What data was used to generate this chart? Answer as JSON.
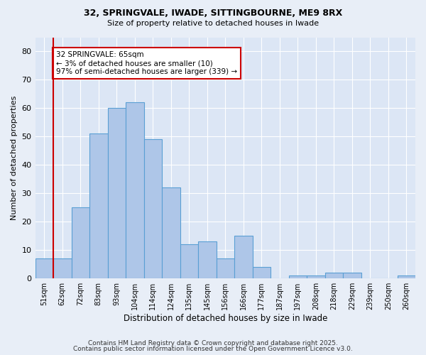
{
  "title1": "32, SPRINGVALE, IWADE, SITTINGBOURNE, ME9 8RX",
  "title2": "Size of property relative to detached houses in Iwade",
  "xlabel": "Distribution of detached houses by size in Iwade",
  "ylabel": "Number of detached properties",
  "bar_labels": [
    "51sqm",
    "62sqm",
    "72sqm",
    "83sqm",
    "93sqm",
    "104sqm",
    "114sqm",
    "124sqm",
    "135sqm",
    "145sqm",
    "156sqm",
    "166sqm",
    "177sqm",
    "187sqm",
    "197sqm",
    "208sqm",
    "218sqm",
    "229sqm",
    "239sqm",
    "250sqm",
    "260sqm"
  ],
  "bar_values": [
    7,
    7,
    25,
    51,
    60,
    62,
    49,
    32,
    12,
    13,
    7,
    15,
    4,
    0,
    1,
    1,
    2,
    2,
    0,
    0,
    1
  ],
  "bar_color": "#aec6e8",
  "bar_edge_color": "#5a9fd4",
  "vline_x": 0.5,
  "vline_color": "#cc0000",
  "annotation_text": "32 SPRINGVALE: 65sqm\n← 3% of detached houses are smaller (10)\n97% of semi-detached houses are larger (339) →",
  "annotation_box_color": "#ffffff",
  "annotation_box_edge": "#cc0000",
  "bg_color": "#e8eef7",
  "plot_bg_color": "#dce6f5",
  "grid_color": "#ffffff",
  "footer1": "Contains HM Land Registry data © Crown copyright and database right 2025.",
  "footer2": "Contains public sector information licensed under the Open Government Licence v3.0.",
  "ylim": [
    0,
    85
  ],
  "yticks": [
    0,
    10,
    20,
    30,
    40,
    50,
    60,
    70,
    80
  ]
}
